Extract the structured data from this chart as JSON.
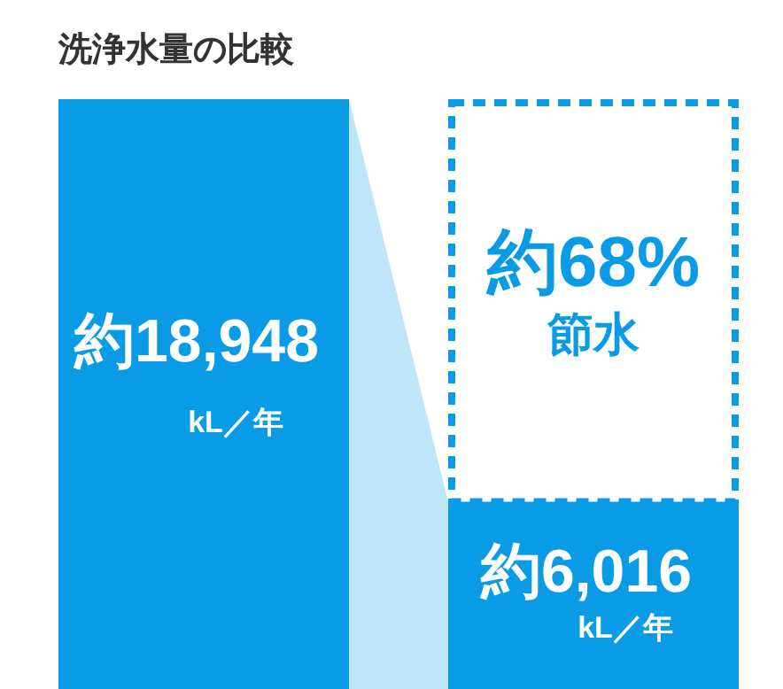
{
  "chart_data": {
    "type": "bar",
    "title": "洗浄水量の比較",
    "categories": [
      null,
      null
    ],
    "values": [
      18948,
      6016
    ],
    "colors": [
      "#0a9be6",
      "#0a9be6"
    ],
    "value_labels": [
      "約18,948 kL／年",
      "約6,016 kL／年"
    ],
    "annotations": [
      "約68% 節水"
    ]
  }
}
